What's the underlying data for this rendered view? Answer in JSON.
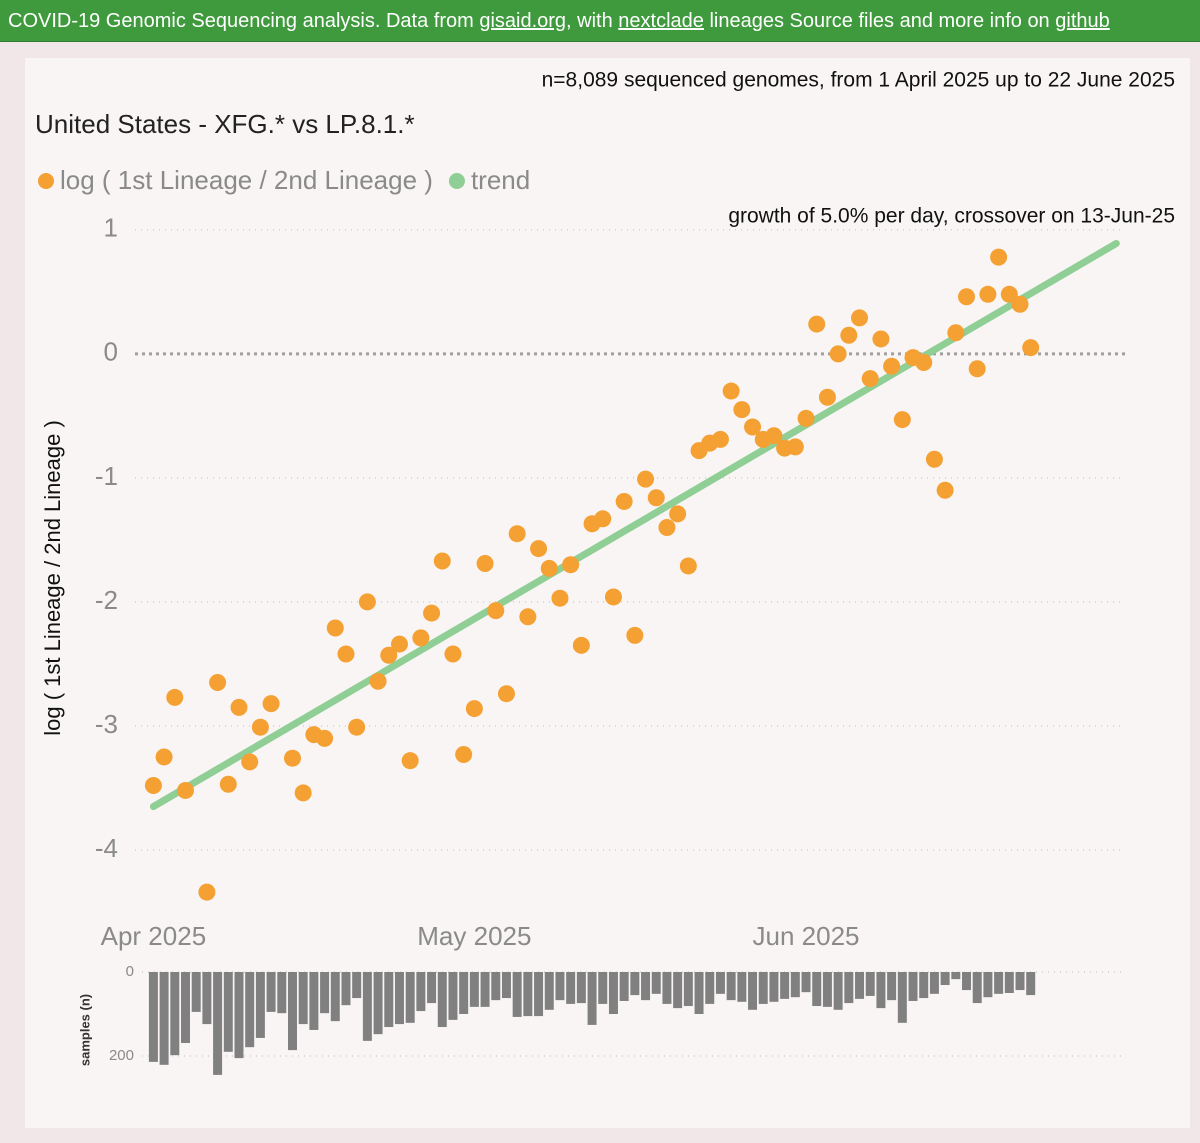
{
  "header": {
    "segments": [
      {
        "text": "COVID-19 Genomic Sequencing analysis. Data from ",
        "link": false
      },
      {
        "text": "gisaid.org",
        "link": true
      },
      {
        "text": ", with ",
        "link": false
      },
      {
        "text": "nextclade",
        "link": true
      },
      {
        "text": " lineages Source files and more info on ",
        "link": false
      },
      {
        "text": "github",
        "link": true
      }
    ]
  },
  "chart_data": [
    {
      "type": "scatter",
      "title": "United States - XFG.* vs LP.8.1.*",
      "subtitle": "n=8,089 sequenced genomes, from 1 April 2025 up to 22 June 2025",
      "annotation": "growth of 5.0% per day, crossover on 13-Jun-25",
      "y_label": "log ( 1st Lineage / 2nd Lineage )",
      "x": [
        "2025-04-01",
        "2025-04-02",
        "2025-04-03",
        "2025-04-04",
        "2025-04-06",
        "2025-04-07",
        "2025-04-08",
        "2025-04-09",
        "2025-04-10",
        "2025-04-11",
        "2025-04-12",
        "2025-04-14",
        "2025-04-15",
        "2025-04-16",
        "2025-04-17",
        "2025-04-18",
        "2025-04-19",
        "2025-04-20",
        "2025-04-21",
        "2025-04-22",
        "2025-04-23",
        "2025-04-24",
        "2025-04-25",
        "2025-04-26",
        "2025-04-27",
        "2025-04-28",
        "2025-04-29",
        "2025-04-30",
        "2025-05-01",
        "2025-05-02",
        "2025-05-03",
        "2025-05-04",
        "2025-05-05",
        "2025-05-06",
        "2025-05-07",
        "2025-05-08",
        "2025-05-09",
        "2025-05-10",
        "2025-05-11",
        "2025-05-12",
        "2025-05-13",
        "2025-05-14",
        "2025-05-15",
        "2025-05-16",
        "2025-05-17",
        "2025-05-18",
        "2025-05-19",
        "2025-05-20",
        "2025-05-21",
        "2025-05-22",
        "2025-05-23",
        "2025-05-24",
        "2025-05-25",
        "2025-05-26",
        "2025-05-27",
        "2025-05-28",
        "2025-05-29",
        "2025-05-30",
        "2025-05-31",
        "2025-06-01",
        "2025-06-02",
        "2025-06-03",
        "2025-06-04",
        "2025-06-05",
        "2025-06-06",
        "2025-06-07",
        "2025-06-08",
        "2025-06-09",
        "2025-06-10",
        "2025-06-11",
        "2025-06-12",
        "2025-06-13",
        "2025-06-14",
        "2025-06-15",
        "2025-06-16",
        "2025-06-17",
        "2025-06-18",
        "2025-06-19",
        "2025-06-20",
        "2025-06-21",
        "2025-06-22"
      ],
      "series": [
        {
          "name": "log ( 1st Lineage / 2nd Lineage )",
          "color": "#f5a033",
          "values": [
            -3.48,
            -3.25,
            -2.77,
            -3.52,
            -4.34,
            -2.65,
            -3.47,
            -2.85,
            -3.29,
            -3.01,
            -2.82,
            -3.26,
            -3.54,
            -3.07,
            -3.1,
            -2.21,
            -2.42,
            -3.01,
            -2.0,
            -2.64,
            -2.43,
            -2.34,
            -3.28,
            -2.29,
            -2.09,
            -1.67,
            -2.42,
            -3.23,
            -2.86,
            -1.69,
            -2.07,
            -2.74,
            -1.45,
            -2.12,
            -1.57,
            -1.73,
            -1.97,
            -1.7,
            -2.35,
            -1.37,
            -1.33,
            -1.96,
            -1.19,
            -2.27,
            -1.01,
            -1.16,
            -1.4,
            -1.29,
            -1.71,
            -0.78,
            -0.72,
            -0.69,
            -0.3,
            -0.45,
            -0.59,
            -0.69,
            -0.66,
            -0.76,
            -0.75,
            -0.52,
            0.24,
            -0.35,
            0,
            0.15,
            0.29,
            -0.2,
            0.12,
            -0.1,
            -0.53,
            -0.03,
            -0.07,
            -0.85,
            -1.1,
            0.17,
            0.46,
            -0.12,
            0.48,
            0.78,
            0.48,
            0.4,
            0.05
          ]
        },
        {
          "name": "trend",
          "color": "#8fce94",
          "type": "line",
          "x": [
            "2025-04-01",
            "2025-06-30"
          ],
          "values": [
            -3.65,
            0.89
          ]
        }
      ],
      "xlim": [
        "2025-03-30",
        "2025-07-01"
      ],
      "xticks": [
        {
          "value": "2025-04-01",
          "label": "Apr 2025"
        },
        {
          "value": "2025-05-01",
          "label": "May 2025"
        },
        {
          "value": "2025-06-01",
          "label": "Jun 2025"
        }
      ],
      "ylim": [
        -4.5,
        1.2
      ],
      "yticks": [
        -4,
        -3,
        -2,
        -1,
        0,
        1
      ],
      "grid": true
    },
    {
      "type": "bar",
      "y_label": "samples (n)",
      "x": [
        "2025-04-01",
        "2025-04-02",
        "2025-04-03",
        "2025-04-04",
        "2025-04-05",
        "2025-04-06",
        "2025-04-07",
        "2025-04-08",
        "2025-04-09",
        "2025-04-10",
        "2025-04-11",
        "2025-04-12",
        "2025-04-13",
        "2025-04-14",
        "2025-04-15",
        "2025-04-16",
        "2025-04-17",
        "2025-04-18",
        "2025-04-19",
        "2025-04-20",
        "2025-04-21",
        "2025-04-22",
        "2025-04-23",
        "2025-04-24",
        "2025-04-25",
        "2025-04-26",
        "2025-04-27",
        "2025-04-28",
        "2025-04-29",
        "2025-04-30",
        "2025-05-01",
        "2025-05-02",
        "2025-05-03",
        "2025-05-04",
        "2025-05-05",
        "2025-05-06",
        "2025-05-07",
        "2025-05-08",
        "2025-05-09",
        "2025-05-10",
        "2025-05-11",
        "2025-05-12",
        "2025-05-13",
        "2025-05-14",
        "2025-05-15",
        "2025-05-16",
        "2025-05-17",
        "2025-05-18",
        "2025-05-19",
        "2025-05-20",
        "2025-05-21",
        "2025-05-22",
        "2025-05-23",
        "2025-05-24",
        "2025-05-25",
        "2025-05-26",
        "2025-05-27",
        "2025-05-28",
        "2025-05-29",
        "2025-05-30",
        "2025-05-31",
        "2025-06-01",
        "2025-06-02",
        "2025-06-03",
        "2025-06-04",
        "2025-06-05",
        "2025-06-06",
        "2025-06-07",
        "2025-06-08",
        "2025-06-09",
        "2025-06-10",
        "2025-06-11",
        "2025-06-12",
        "2025-06-13",
        "2025-06-14",
        "2025-06-15",
        "2025-06-16",
        "2025-06-17",
        "2025-06-18",
        "2025-06-19",
        "2025-06-20",
        "2025-06-21",
        "2025-06-22"
      ],
      "values": [
        214,
        221,
        198,
        169,
        95,
        124,
        245,
        190,
        205,
        179,
        157,
        95,
        98,
        186,
        124,
        138,
        98,
        117,
        79,
        62,
        164,
        148,
        131,
        124,
        121,
        93,
        74,
        131,
        114,
        100,
        83,
        83,
        67,
        62,
        107,
        105,
        105,
        90,
        67,
        76,
        74,
        126,
        76,
        100,
        69,
        55,
        67,
        52,
        76,
        86,
        81,
        100,
        76,
        52,
        67,
        71,
        90,
        76,
        71,
        64,
        60,
        48,
        81,
        83,
        90,
        74,
        64,
        57,
        86,
        67,
        121,
        69,
        62,
        52,
        31,
        17,
        43,
        74,
        60,
        52,
        50,
        43,
        55
      ],
      "color": "#808080",
      "xlim": [
        "2025-03-30",
        "2025-07-01"
      ],
      "ylim": [
        0,
        250
      ],
      "yticks": [
        0,
        200
      ],
      "grid": true
    }
  ]
}
